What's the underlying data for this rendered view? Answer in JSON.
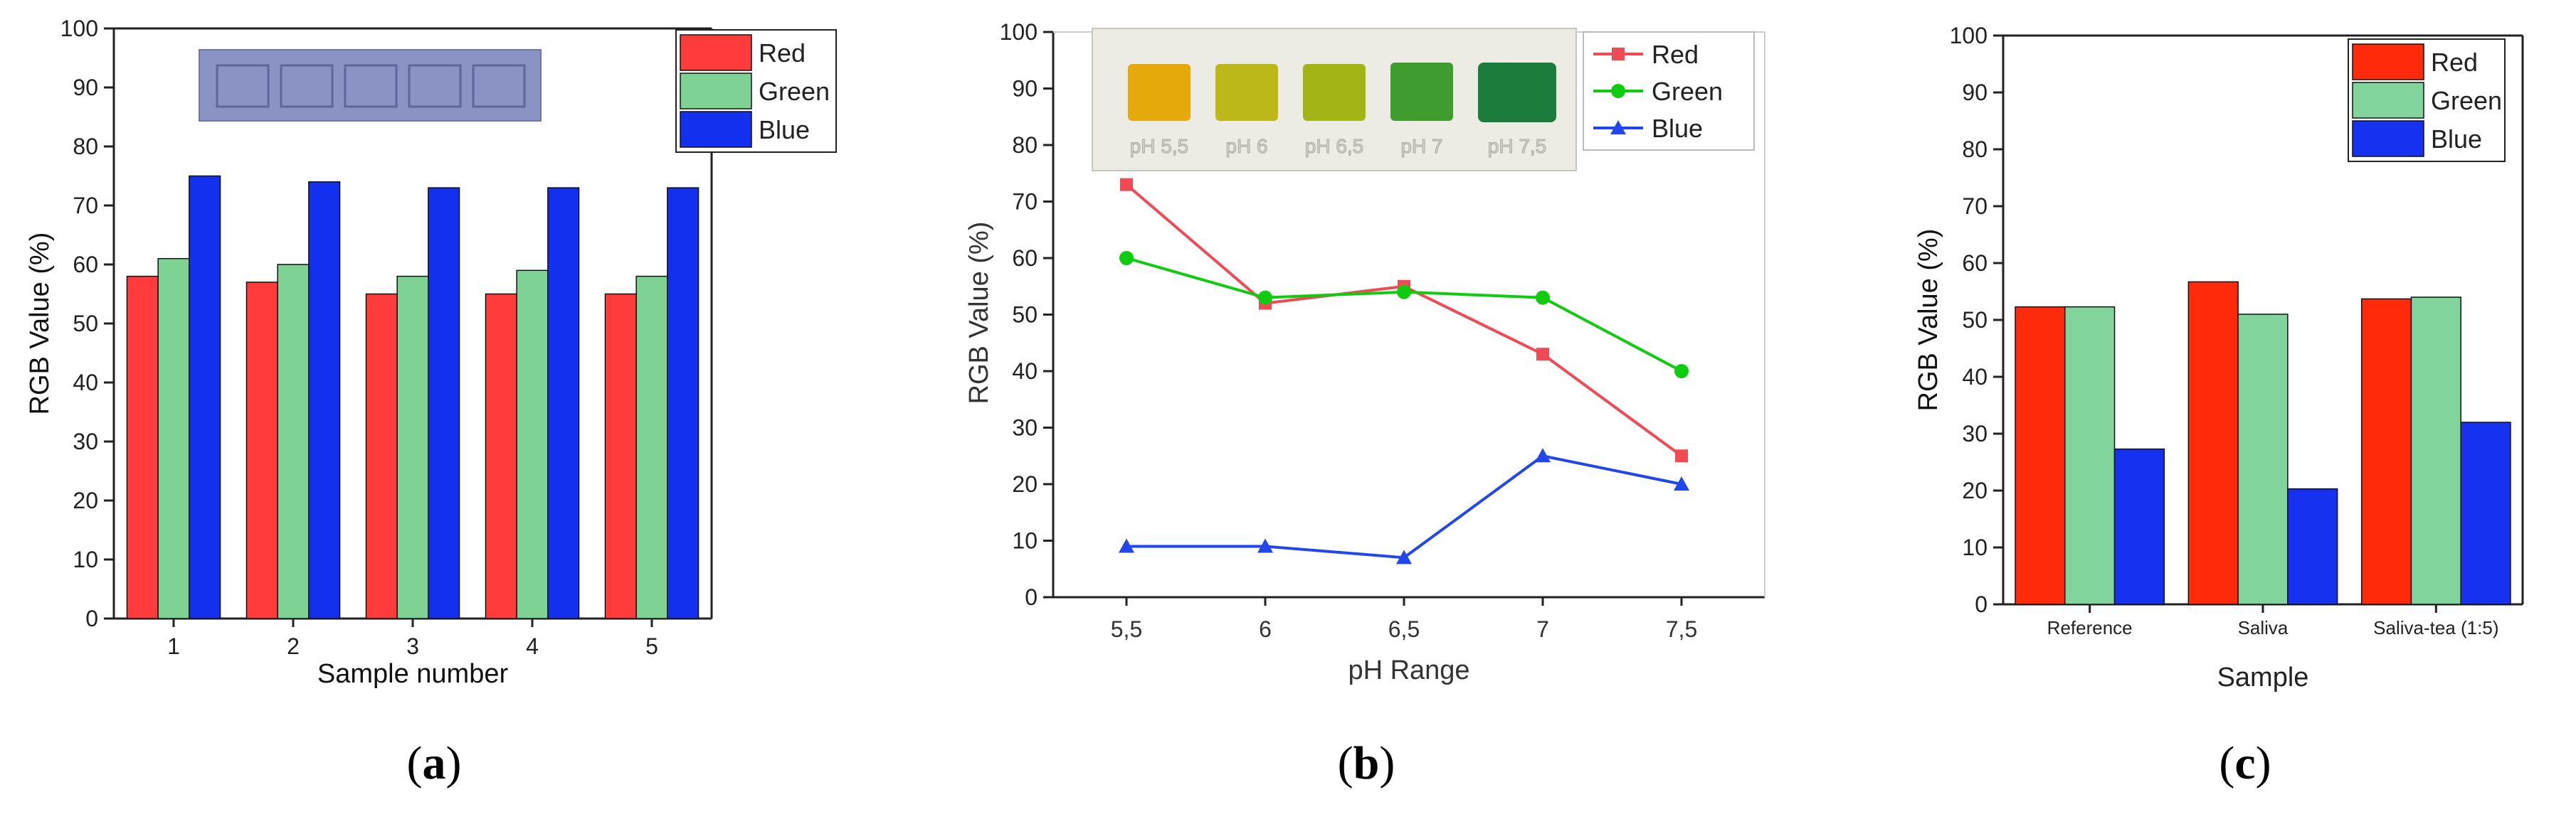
{
  "panels": [
    {
      "panel_label": "a",
      "inset_caption": "",
      "chart_data": {
        "type": "bar",
        "xlabel": "Sample number",
        "ylabel": "RGB Value (%)",
        "ylim": [
          0,
          100
        ],
        "yticks": [
          0,
          10,
          20,
          30,
          40,
          50,
          60,
          70,
          80,
          90,
          100
        ],
        "categories": [
          "1",
          "2",
          "3",
          "4",
          "5"
        ],
        "series": [
          {
            "name": "Red",
            "color": "#ff3b3b",
            "values": [
              58,
              57,
              55,
              55,
              55
            ]
          },
          {
            "name": "Green",
            "color": "#7ed394",
            "values": [
              61,
              60,
              58,
              59,
              58
            ]
          },
          {
            "name": "Blue",
            "color": "#1230ee",
            "values": [
              75,
              74,
              73,
              73,
              73
            ]
          }
        ],
        "legend": "top-right",
        "grid": false,
        "inset_image": "membrane-photo"
      }
    },
    {
      "panel_label": "b",
      "inset_labels": [
        "pH 5,5",
        "pH 6",
        "pH 6,5",
        "pH 7",
        "pH 7,5"
      ],
      "chart_data": {
        "type": "line",
        "xlabel": "pH Range",
        "ylabel": "RGB Value (%)",
        "ylim": [
          0,
          100
        ],
        "yticks": [
          0,
          10,
          20,
          30,
          40,
          50,
          60,
          70,
          80,
          90,
          100
        ],
        "x": [
          "5,5",
          "6",
          "6,5",
          "7",
          "7,5"
        ],
        "series": [
          {
            "name": "Red",
            "color": "#f04a55",
            "marker": "square",
            "values": [
              73,
              52,
              55,
              43,
              25
            ]
          },
          {
            "name": "Green",
            "color": "#10cc10",
            "marker": "circle",
            "values": [
              60,
              53,
              54,
              53,
              40
            ]
          },
          {
            "name": "Blue",
            "color": "#2246ee",
            "marker": "triangle",
            "values": [
              9,
              9,
              7,
              25,
              20
            ]
          }
        ],
        "legend": "top-right",
        "grid": false,
        "inset_image": "ph-color-strip"
      }
    },
    {
      "panel_label": "c",
      "chart_data": {
        "type": "bar",
        "xlabel": "Sample",
        "ylabel": "RGB Value (%)",
        "ylim": [
          0,
          100
        ],
        "yticks": [
          0,
          10,
          20,
          30,
          40,
          50,
          60,
          70,
          80,
          90,
          100
        ],
        "categories": [
          "Reference",
          "Saliva",
          "Saliva-tea (1:5)"
        ],
        "series": [
          {
            "name": "Red",
            "color": "#ff2a0a",
            "values": [
              52.3,
              56.7,
              53.7
            ]
          },
          {
            "name": "Green",
            "color": "#80d49c",
            "values": [
              52.3,
              51,
              54
            ]
          },
          {
            "name": "Blue",
            "color": "#1632f0",
            "values": [
              27.3,
              20.3,
              32
            ]
          }
        ],
        "legend": "top-right",
        "grid": false
      }
    }
  ]
}
